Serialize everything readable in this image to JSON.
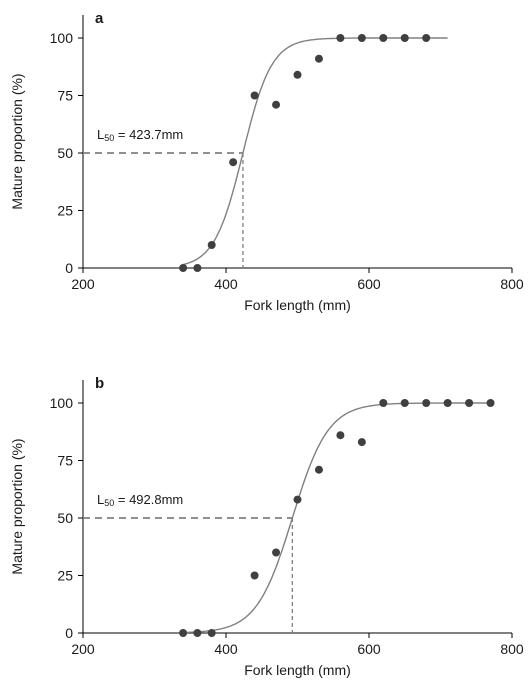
{
  "chart_data": [
    {
      "type": "scatter",
      "panel_label": "a",
      "xlabel": "Fork length (mm)",
      "ylabel": "Mature proportion (%)",
      "xlim": [
        200,
        800
      ],
      "ylim": [
        0,
        110
      ],
      "xticks": [
        "200",
        "400",
        "600",
        "800"
      ],
      "yticks": [
        "0",
        "25",
        "50",
        "75",
        "100"
      ],
      "annotation": {
        "prefix": "L",
        "subscript": "50",
        "suffix": " = 423.7mm"
      },
      "l50": 423.7,
      "points": [
        {
          "x": 340,
          "y": 0
        },
        {
          "x": 360,
          "y": 0
        },
        {
          "x": 380,
          "y": 10
        },
        {
          "x": 410,
          "y": 46
        },
        {
          "x": 440,
          "y": 75
        },
        {
          "x": 470,
          "y": 71
        },
        {
          "x": 500,
          "y": 84
        },
        {
          "x": 530,
          "y": 91
        },
        {
          "x": 560,
          "y": 100
        },
        {
          "x": 590,
          "y": 100
        },
        {
          "x": 620,
          "y": 100
        },
        {
          "x": 650,
          "y": 100
        },
        {
          "x": 680,
          "y": 100
        }
      ],
      "curve": {
        "x_start": 340,
        "x_end": 710,
        "slope": 0.05
      },
      "grid": false,
      "colors": {
        "points": "#404040",
        "curve": "#808080",
        "reference": "#808080",
        "axes": "#000000"
      }
    },
    {
      "type": "scatter",
      "panel_label": "b",
      "xlabel": "Fork length (mm)",
      "ylabel": "Mature proportion (%)",
      "xlim": [
        200,
        800
      ],
      "ylim": [
        0,
        110
      ],
      "xticks": [
        "200",
        "400",
        "600",
        "800"
      ],
      "yticks": [
        "0",
        "25",
        "50",
        "75",
        "100"
      ],
      "annotation": {
        "prefix": "L",
        "subscript": "50",
        "suffix": " = 492.8mm"
      },
      "l50": 492.8,
      "points": [
        {
          "x": 340,
          "y": 0
        },
        {
          "x": 360,
          "y": 0
        },
        {
          "x": 380,
          "y": 0
        },
        {
          "x": 440,
          "y": 25
        },
        {
          "x": 470,
          "y": 35
        },
        {
          "x": 500,
          "y": 58
        },
        {
          "x": 530,
          "y": 71
        },
        {
          "x": 560,
          "y": 86
        },
        {
          "x": 590,
          "y": 83
        },
        {
          "x": 620,
          "y": 100
        },
        {
          "x": 650,
          "y": 100
        },
        {
          "x": 680,
          "y": 100
        },
        {
          "x": 710,
          "y": 100
        },
        {
          "x": 740,
          "y": 100
        },
        {
          "x": 770,
          "y": 100
        }
      ],
      "curve": {
        "x_start": 340,
        "x_end": 775,
        "slope": 0.04
      },
      "grid": false,
      "colors": {
        "points": "#404040",
        "curve": "#808080",
        "reference": "#808080",
        "axes": "#000000"
      }
    }
  ]
}
